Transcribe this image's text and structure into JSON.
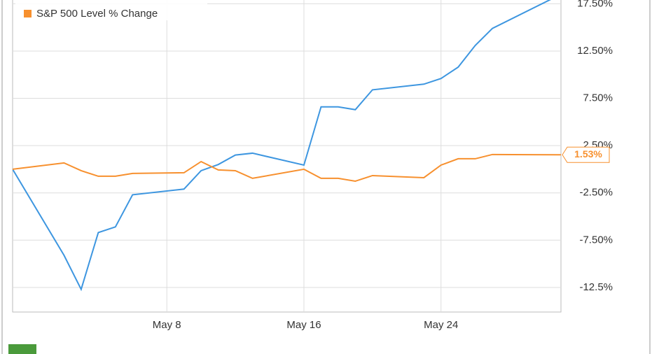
{
  "chart_data": {
    "type": "line",
    "x": [
      -1,
      2,
      3,
      4,
      5,
      6,
      9,
      10,
      11,
      12,
      13,
      16,
      17,
      18,
      19,
      20,
      23,
      24,
      25,
      26,
      27,
      31
    ],
    "series": [
      {
        "color": "#3d96e0",
        "values": [
          0,
          -9.1,
          -12.7,
          -6.7,
          -6.1,
          -2.7,
          -2.1,
          -0.15,
          0.5,
          1.5,
          1.7,
          0.44,
          6.6,
          6.6,
          6.3,
          8.4,
          9.0,
          9.6,
          10.8,
          13.1,
          14.9,
          18.5
        ]
      },
      {
        "name": "S&P 500 Level % Change",
        "color": "#f7902e",
        "values": [
          0,
          0.67,
          -0.15,
          -0.74,
          -0.74,
          -0.44,
          -0.37,
          0.81,
          -0.07,
          -0.15,
          -0.96,
          0,
          -0.96,
          -0.96,
          -1.26,
          -0.67,
          -0.89,
          0.44,
          1.11,
          1.11,
          1.56,
          1.53
        ],
        "value_labels": [
          null,
          null,
          null,
          null,
          null,
          null,
          null,
          null,
          null,
          null,
          null,
          null,
          null,
          null,
          null,
          null,
          null,
          null,
          null,
          null,
          null,
          "1.53%"
        ]
      }
    ],
    "xlim": [
      -1,
      31
    ],
    "xticks": [
      {
        "value": 8,
        "label": "May 8"
      },
      {
        "value": 16,
        "label": "May 16"
      },
      {
        "value": 24,
        "label": "May 24"
      }
    ],
    "ylim": [
      -15.1,
      17.9
    ],
    "yticks": [
      {
        "value": 17.5,
        "label": "17.50%"
      },
      {
        "value": 12.5,
        "label": "12.50%"
      },
      {
        "value": 7.5,
        "label": "7.50%"
      },
      {
        "value": 2.5,
        "label": "2.50%"
      },
      {
        "value": -2.5,
        "label": "-2.50%"
      },
      {
        "value": -7.5,
        "label": "-7.50%"
      },
      {
        "value": -12.5,
        "label": "-12.5%"
      }
    ],
    "grid": true,
    "legend": "top-left"
  }
}
